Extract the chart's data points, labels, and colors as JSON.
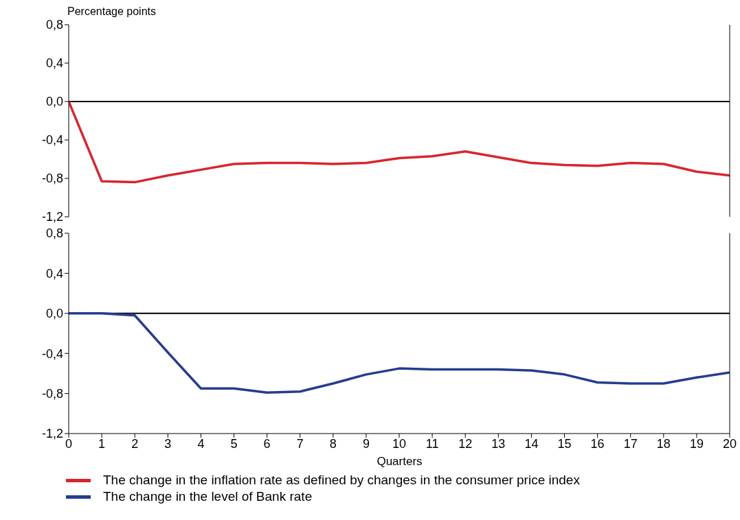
{
  "chart_data": [
    {
      "type": "line",
      "ylabel": "Percentage points",
      "x": [
        0,
        1,
        2,
        3,
        4,
        5,
        6,
        7,
        8,
        9,
        10,
        11,
        12,
        13,
        14,
        15,
        16,
        17,
        18,
        19,
        20
      ],
      "xlim": [
        0,
        20
      ],
      "ylim": [
        -1.2,
        0.8
      ],
      "yticks": [
        {
          "value": -1.2,
          "label": "-1,2"
        },
        {
          "value": -0.8,
          "label": "-0,8"
        },
        {
          "value": -0.4,
          "label": "-0,4"
        },
        {
          "value": 0,
          "label": "0,0"
        },
        {
          "value": 0.4,
          "label": "0,4"
        },
        {
          "value": 0.8,
          "label": "0,8"
        }
      ],
      "tick_labels": "y",
      "grid": false,
      "legend": "bottom",
      "marker": "none",
      "line_style": "solid",
      "ref_lines": [
        {
          "axis": "y",
          "value": 0,
          "color": "#000000"
        }
      ],
      "series": [
        {
          "name": "The change in the inflation rate as defined by changes in the consumer price index",
          "color": "#d7262e",
          "values": [
            0,
            -0.83,
            -0.84,
            -0.77,
            -0.71,
            -0.65,
            -0.64,
            -0.64,
            -0.65,
            -0.64,
            -0.59,
            -0.57,
            -0.52,
            -0.58,
            -0.64,
            -0.66,
            -0.67,
            -0.64,
            -0.65,
            -0.73,
            -0.77
          ]
        }
      ]
    },
    {
      "type": "line",
      "xlabel": "Quarters",
      "x": [
        0,
        1,
        2,
        3,
        4,
        5,
        6,
        7,
        8,
        9,
        10,
        11,
        12,
        13,
        14,
        15,
        16,
        17,
        18,
        19,
        20
      ],
      "xlim": [
        0,
        20
      ],
      "xticks": [
        0,
        1,
        2,
        3,
        4,
        5,
        6,
        7,
        8,
        9,
        10,
        11,
        12,
        13,
        14,
        15,
        16,
        17,
        18,
        19,
        20
      ],
      "ylim": [
        -1.2,
        0.8
      ],
      "yticks": [
        {
          "value": -1.2,
          "label": "-1,2"
        },
        {
          "value": -0.8,
          "label": "-0,8"
        },
        {
          "value": -0.4,
          "label": "-0,4"
        },
        {
          "value": 0,
          "label": "0,0"
        },
        {
          "value": 0.4,
          "label": "0,4"
        },
        {
          "value": 0.8,
          "label": "0,8"
        }
      ],
      "grid": false,
      "legend": "bottom",
      "marker": "none",
      "line_style": "solid",
      "ref_lines": [
        {
          "axis": "y",
          "value": 0,
          "color": "#000000"
        }
      ],
      "series": [
        {
          "name": "The change in the level of Bank rate",
          "color": "#253c8f",
          "values": [
            0,
            0,
            -0.02,
            -0.39,
            -0.75,
            -0.75,
            -0.79,
            -0.78,
            -0.7,
            -0.61,
            -0.55,
            -0.56,
            -0.56,
            -0.56,
            -0.57,
            -0.61,
            -0.69,
            -0.7,
            -0.7,
            -0.64,
            -0.59
          ]
        }
      ]
    }
  ]
}
